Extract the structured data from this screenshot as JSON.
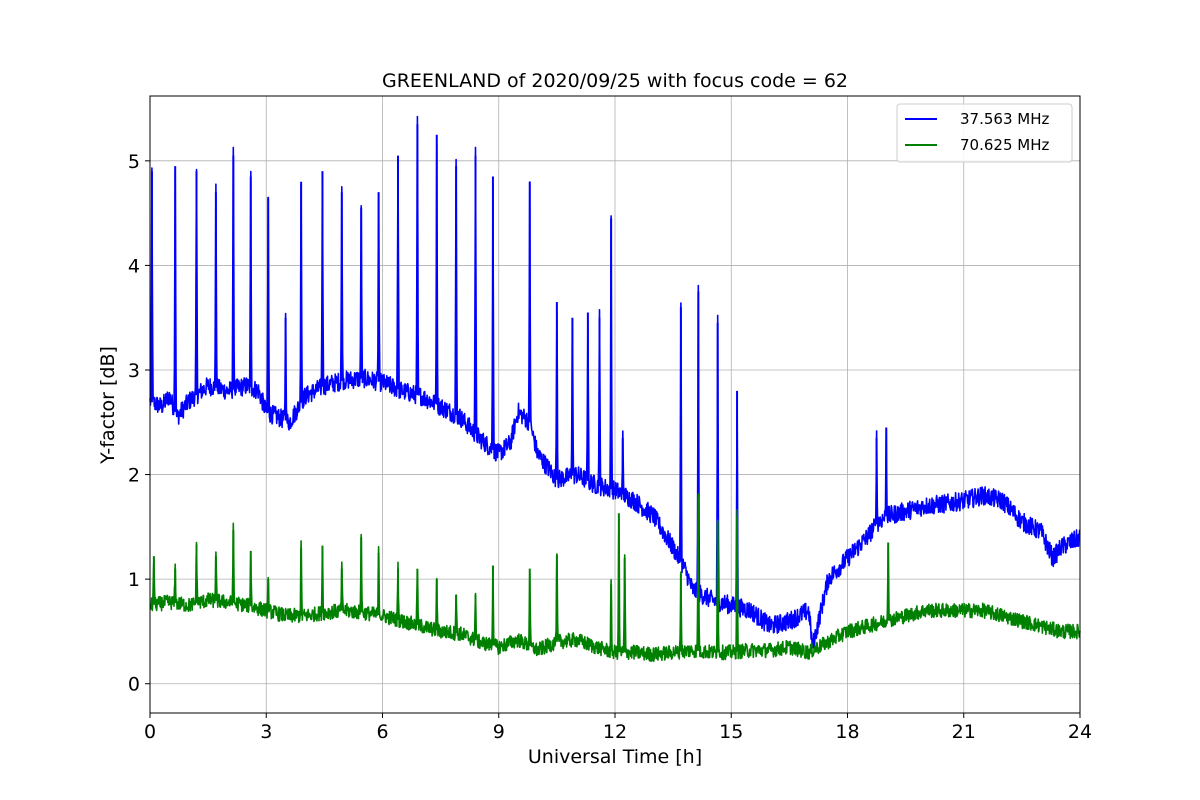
{
  "chart_data": {
    "type": "line",
    "title": "GREENLAND of 2020/09/25 with focus code = 62",
    "xlabel": "Universal Time [h]",
    "ylabel": "Y-factor [dB]",
    "xlim": [
      0,
      24
    ],
    "ylim": [
      -0.28,
      5.62
    ],
    "xticks": [
      0,
      3,
      6,
      9,
      12,
      15,
      18,
      21,
      24
    ],
    "xtick_labels": [
      "0",
      "3",
      "6",
      "9",
      "12",
      "15",
      "18",
      "21",
      "24"
    ],
    "yticks": [
      0,
      1,
      2,
      3,
      4,
      5
    ],
    "ytick_labels": [
      "0",
      "1",
      "2",
      "3",
      "4",
      "5"
    ],
    "grid": true,
    "legend_position": "upper right",
    "series": [
      {
        "name": "37.563 MHz",
        "color": "#0000ff",
        "baseline": {
          "x": [
            0,
            0.3,
            0.5,
            0.7,
            1.0,
            1.5,
            2.0,
            2.5,
            2.8,
            3.0,
            3.3,
            3.6,
            4.0,
            4.5,
            5.0,
            5.5,
            6.0,
            6.5,
            7.0,
            7.5,
            8.0,
            8.5,
            8.8,
            9.0,
            9.3,
            9.5,
            9.8,
            10.0,
            10.5,
            11.0,
            11.5,
            12.0,
            12.5,
            13.0,
            13.5,
            13.8,
            14.0,
            14.5,
            15.0,
            15.5,
            16.0,
            16.5,
            17.0,
            17.1,
            17.5,
            18.0,
            18.5,
            18.8,
            19.0,
            19.5,
            20.0,
            20.5,
            21.0,
            21.5,
            22.0,
            22.5,
            23.0,
            23.3,
            23.5,
            24.0
          ],
          "y": [
            2.7,
            2.65,
            2.75,
            2.55,
            2.7,
            2.85,
            2.8,
            2.85,
            2.8,
            2.6,
            2.55,
            2.5,
            2.75,
            2.85,
            2.9,
            2.92,
            2.88,
            2.8,
            2.75,
            2.65,
            2.55,
            2.35,
            2.25,
            2.2,
            2.3,
            2.6,
            2.5,
            2.2,
            1.95,
            2.0,
            1.9,
            1.85,
            1.75,
            1.6,
            1.3,
            1.1,
            0.9,
            0.8,
            0.75,
            0.7,
            0.55,
            0.6,
            0.7,
            0.35,
            1.0,
            1.2,
            1.4,
            1.55,
            1.6,
            1.65,
            1.7,
            1.72,
            1.75,
            1.8,
            1.75,
            1.55,
            1.45,
            1.2,
            1.3,
            1.4
          ]
        },
        "spikes": [
          {
            "x": 0.05,
            "y": 4.9
          },
          {
            "x": 0.65,
            "y": 4.95
          },
          {
            "x": 1.2,
            "y": 4.9
          },
          {
            "x": 1.7,
            "y": 4.7
          },
          {
            "x": 2.15,
            "y": 5.05
          },
          {
            "x": 2.6,
            "y": 4.85
          },
          {
            "x": 3.05,
            "y": 4.65
          },
          {
            "x": 3.5,
            "y": 3.5
          },
          {
            "x": 3.9,
            "y": 4.8
          },
          {
            "x": 4.45,
            "y": 4.9
          },
          {
            "x": 4.95,
            "y": 4.7
          },
          {
            "x": 5.45,
            "y": 4.55
          },
          {
            "x": 5.9,
            "y": 4.7
          },
          {
            "x": 6.4,
            "y": 5.05
          },
          {
            "x": 6.9,
            "y": 5.35
          },
          {
            "x": 7.4,
            "y": 5.25
          },
          {
            "x": 7.9,
            "y": 4.95
          },
          {
            "x": 8.4,
            "y": 5.05
          },
          {
            "x": 8.85,
            "y": 4.85
          },
          {
            "x": 9.8,
            "y": 4.8
          },
          {
            "x": 10.5,
            "y": 3.65
          },
          {
            "x": 10.9,
            "y": 3.5
          },
          {
            "x": 11.3,
            "y": 3.55
          },
          {
            "x": 11.6,
            "y": 3.5
          },
          {
            "x": 11.9,
            "y": 4.45
          },
          {
            "x": 12.2,
            "y": 2.35
          },
          {
            "x": 13.7,
            "y": 3.6
          },
          {
            "x": 14.15,
            "y": 3.75
          },
          {
            "x": 14.65,
            "y": 3.45
          },
          {
            "x": 15.15,
            "y": 2.8
          },
          {
            "x": 18.75,
            "y": 2.35
          },
          {
            "x": 19.0,
            "y": 2.45
          }
        ],
        "noise": 0.09
      },
      {
        "name": "70.625 MHz",
        "color": "#008000",
        "baseline": {
          "x": [
            0,
            0.5,
            1.0,
            1.5,
            2.0,
            2.5,
            3.0,
            3.5,
            4.0,
            4.5,
            5.0,
            5.5,
            6.0,
            6.5,
            7.0,
            7.5,
            8.0,
            8.5,
            9.0,
            9.5,
            10.0,
            10.5,
            11.0,
            11.5,
            12.0,
            12.5,
            13.0,
            13.5,
            14.0,
            14.5,
            15.0,
            15.5,
            16.0,
            16.5,
            17.0,
            17.5,
            18.0,
            18.5,
            19.0,
            19.5,
            20.0,
            20.5,
            21.0,
            21.5,
            22.0,
            22.5,
            23.0,
            23.5,
            24.0
          ],
          "y": [
            0.75,
            0.78,
            0.75,
            0.8,
            0.78,
            0.75,
            0.7,
            0.65,
            0.65,
            0.68,
            0.7,
            0.68,
            0.65,
            0.6,
            0.55,
            0.5,
            0.48,
            0.4,
            0.35,
            0.42,
            0.32,
            0.4,
            0.42,
            0.35,
            0.3,
            0.3,
            0.28,
            0.3,
            0.32,
            0.3,
            0.3,
            0.32,
            0.32,
            0.35,
            0.3,
            0.4,
            0.5,
            0.55,
            0.6,
            0.65,
            0.7,
            0.7,
            0.7,
            0.7,
            0.65,
            0.6,
            0.55,
            0.5,
            0.5
          ]
        },
        "spikes": [
          {
            "x": 0.1,
            "y": 1.22
          },
          {
            "x": 0.65,
            "y": 1.1
          },
          {
            "x": 1.2,
            "y": 1.33
          },
          {
            "x": 1.7,
            "y": 1.22
          },
          {
            "x": 2.15,
            "y": 1.47
          },
          {
            "x": 2.6,
            "y": 1.27
          },
          {
            "x": 3.05,
            "y": 1.0
          },
          {
            "x": 3.9,
            "y": 1.3
          },
          {
            "x": 4.45,
            "y": 1.32
          },
          {
            "x": 4.95,
            "y": 1.1
          },
          {
            "x": 5.45,
            "y": 1.4
          },
          {
            "x": 5.9,
            "y": 1.25
          },
          {
            "x": 6.4,
            "y": 1.1
          },
          {
            "x": 6.9,
            "y": 1.1
          },
          {
            "x": 7.4,
            "y": 1.0
          },
          {
            "x": 7.9,
            "y": 0.85
          },
          {
            "x": 8.4,
            "y": 0.85
          },
          {
            "x": 8.85,
            "y": 1.13
          },
          {
            "x": 9.8,
            "y": 1.1
          },
          {
            "x": 10.5,
            "y": 1.23
          },
          {
            "x": 11.9,
            "y": 0.95
          },
          {
            "x": 12.1,
            "y": 1.63
          },
          {
            "x": 12.25,
            "y": 1.2
          },
          {
            "x": 13.7,
            "y": 1.05
          },
          {
            "x": 14.15,
            "y": 1.78
          },
          {
            "x": 14.65,
            "y": 1.55
          },
          {
            "x": 15.15,
            "y": 1.6
          },
          {
            "x": 19.05,
            "y": 1.35
          }
        ],
        "noise": 0.07
      }
    ]
  }
}
